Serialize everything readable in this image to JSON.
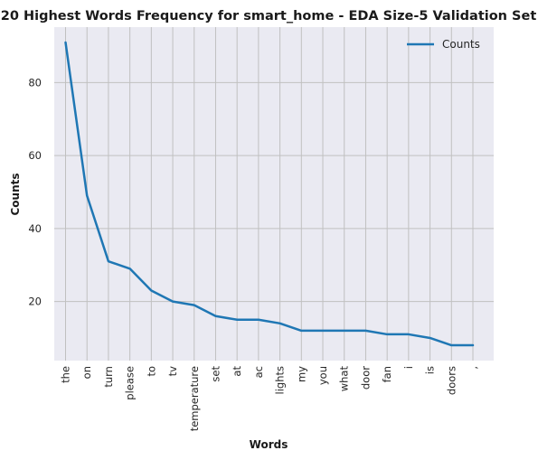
{
  "chart_data": {
    "type": "line",
    "title": "20 Highest Words Frequency for smart_home - EDA Size-5 Validation Set",
    "xlabel": "Words",
    "ylabel": "Counts",
    "categories": [
      "the",
      "on",
      "turn",
      "please",
      "to",
      "tv",
      "temperature",
      "set",
      "at",
      "ac",
      "lights",
      "my",
      "you",
      "what",
      "door",
      "fan",
      "i",
      "is",
      "doors",
      ","
    ],
    "series": [
      {
        "name": "Counts",
        "values": [
          91,
          49,
          31,
          29,
          23,
          20,
          19,
          16,
          15,
          15,
          14,
          12,
          12,
          12,
          12,
          11,
          11,
          10,
          8,
          8
        ],
        "color": "#1f77b4"
      }
    ],
    "ylim": [
      3.8,
      95.2
    ],
    "yticks": [
      20,
      40,
      60,
      80
    ],
    "grid": true,
    "legend": "top-right",
    "background": "#eaeaf2",
    "grid_color": "#c0c0c0"
  }
}
